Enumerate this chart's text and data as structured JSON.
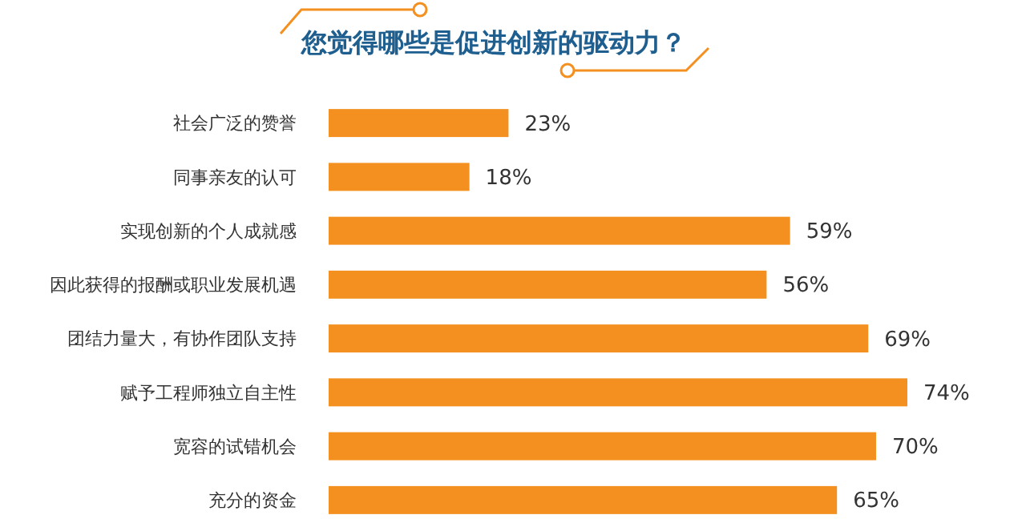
{
  "chart_data": {
    "type": "bar",
    "orientation": "horizontal",
    "title": "您觉得哪些是促进创新的驱动力？",
    "categories": [
      "社会广泛的赞誉",
      "同事亲友的认可",
      "实现创新的个人成就感",
      "因此获得的报酬或职业发展机遇",
      "团结力量大，有协作团队支持",
      "赋予工程师独立自主性",
      "宽容的试错机会",
      "充分的资金"
    ],
    "values": [
      23,
      18,
      59,
      56,
      69,
      74,
      70,
      65
    ],
    "value_labels": [
      "23%",
      "18%",
      "59%",
      "56%",
      "69%",
      "74%",
      "70%",
      "65%"
    ],
    "color": "#f39020",
    "grid": false
  }
}
